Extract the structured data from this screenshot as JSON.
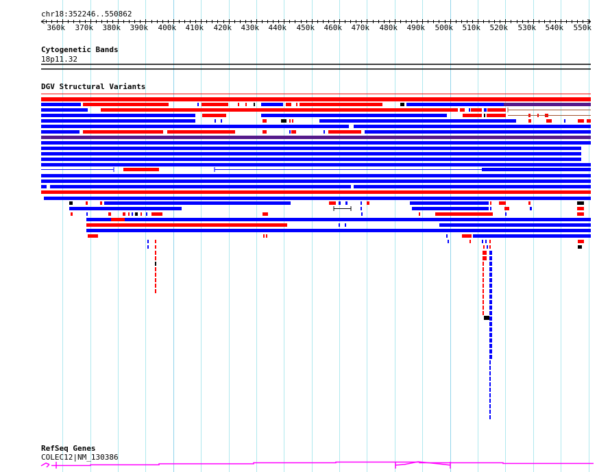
{
  "ruler": {
    "location": "chr18:352246..550862",
    "start": 352246,
    "end": 550862,
    "ticks": [
      "360k",
      "370k",
      "380k",
      "390k",
      "400k",
      "410k",
      "420k",
      "430k",
      "440k",
      "450k",
      "460k",
      "470k",
      "480k",
      "490k",
      "500k",
      "510k",
      "520k",
      "530k",
      "540k",
      "550k"
    ]
  },
  "tracks": {
    "cytoband": {
      "title": "Cytogenetic Bands",
      "band": "18p11.32"
    },
    "dgv": {
      "title": "DGV Structural Variants"
    },
    "refseq": {
      "title": "RefSeq Genes",
      "gene": "COLEC12|NM_130386"
    }
  },
  "colors": {
    "gain": "#ff0000",
    "loss": "#0000ff",
    "both": "#551a8b",
    "other": "#000000",
    "grid": "#aee8ee",
    "gene": "#ff00ff"
  }
}
